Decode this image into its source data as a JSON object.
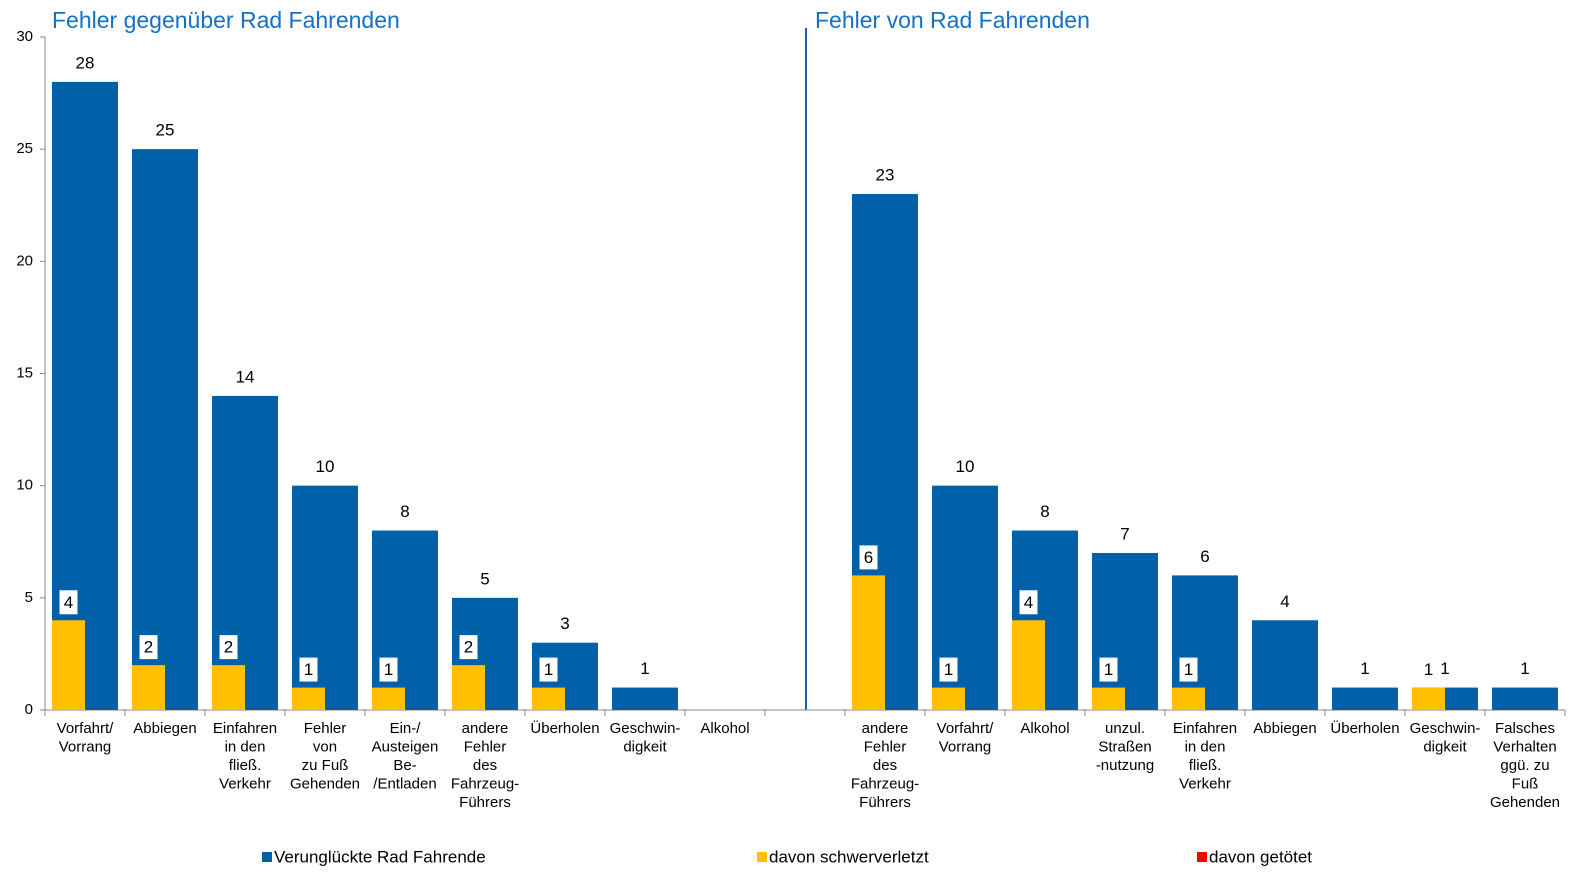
{
  "chart_data": {
    "type": "bar",
    "annotations": [
      "Fehler gegenüber Rad Fahrenden",
      "Fehler von Rad Fahrenden"
    ],
    "categories": [
      "Vorfahrt/\nVorrang",
      "Abbiegen",
      "Einfahren\nin den\nfließ.\nVerkehr",
      "Fehler\nvon\nzu Fuß\nGehenden",
      "Ein-/\nAusteigen\nBe-\n/Entladen",
      "andere\nFehler\ndes\nFahrzeug-\nFührers",
      "Überholen",
      "Geschwin-\ndigkeit",
      "Alkohol",
      null,
      "andere\nFehler\ndes\nFahrzeug-\nFührers",
      "Vorfahrt/\nVorrang",
      "Alkohol",
      "unzul.\nStraßen\n-nutzung",
      "Einfahren\nin den\nfließ.\nVerkehr",
      "Abbiegen",
      "Überholen",
      "Geschwin-\ndigkeit",
      "Falsches\nVerhalten\nggü. zu\nFuß\nGehenden"
    ],
    "series": [
      {
        "name": "Verunglückte Rad Fahrende",
        "color": "#0060a8",
        "values": [
          28,
          25,
          14,
          10,
          8,
          5,
          3,
          1,
          null,
          null,
          23,
          10,
          8,
          7,
          6,
          4,
          1,
          1,
          1
        ]
      },
      {
        "name": "davon schwerverletzt",
        "color": "#ffc000",
        "values": [
          4,
          2,
          2,
          1,
          1,
          2,
          1,
          null,
          null,
          null,
          6,
          1,
          4,
          1,
          1,
          null,
          null,
          1,
          null
        ]
      },
      {
        "name": "davon getötet",
        "color": "#ff0000",
        "values": [
          null,
          null,
          null,
          null,
          null,
          null,
          null,
          null,
          null,
          null,
          null,
          null,
          null,
          null,
          null,
          null,
          null,
          null,
          null
        ]
      }
    ],
    "ylim": [
      0,
      30
    ],
    "yticks": [
      0,
      5,
      10,
      15,
      20,
      25,
      30
    ]
  }
}
